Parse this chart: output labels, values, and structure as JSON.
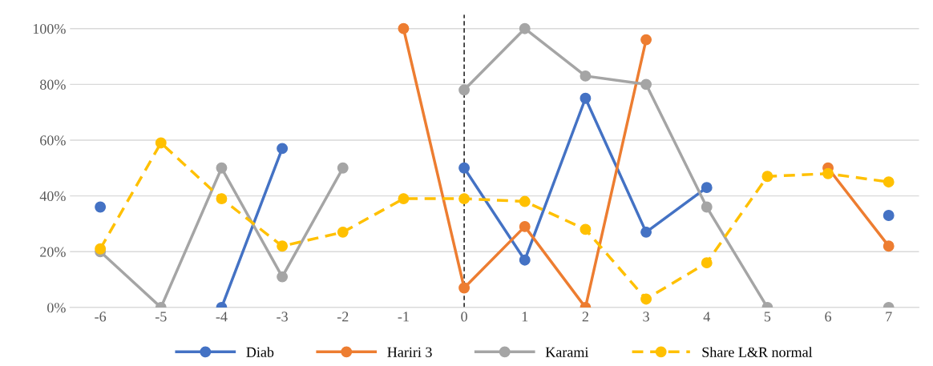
{
  "chart_data": {
    "type": "line",
    "x": [
      -6,
      -5,
      -4,
      -3,
      -2,
      -1,
      0,
      1,
      2,
      3,
      4,
      5,
      6,
      7
    ],
    "series": [
      {
        "name": "Diab",
        "color": "#4472c4",
        "line_style": "solid",
        "values": [
          36,
          null,
          0,
          57,
          null,
          null,
          50,
          17,
          75,
          27,
          43,
          null,
          null,
          33
        ]
      },
      {
        "name": "Hariri 3",
        "color": "#ed7d31",
        "line_style": "solid",
        "values": [
          null,
          null,
          null,
          null,
          null,
          100,
          7,
          29,
          0,
          96,
          null,
          null,
          50,
          22
        ]
      },
      {
        "name": "Karami",
        "color": "#a5a5a5",
        "line_style": "solid",
        "values": [
          20,
          0,
          50,
          11,
          50,
          null,
          78,
          100,
          83,
          80,
          36,
          0,
          null,
          0
        ]
      },
      {
        "name": "Share L&R normal",
        "color": "#ffc000",
        "line_style": "dashed",
        "values": [
          21,
          59,
          39,
          22,
          27,
          39,
          39,
          38,
          28,
          3,
          16,
          47,
          48,
          45
        ]
      }
    ],
    "xlim": [
      -6.5,
      7.5
    ],
    "xticks": [
      -6,
      -5,
      -4,
      -3,
      -2,
      -1,
      0,
      1,
      2,
      3,
      4,
      5,
      6,
      7
    ],
    "ylim": [
      0,
      105
    ],
    "yticks": [
      {
        "value": 0,
        "label": "0%"
      },
      {
        "value": 20,
        "label": "20%"
      },
      {
        "value": 40,
        "label": "40%"
      },
      {
        "value": 60,
        "label": "60%"
      },
      {
        "value": 80,
        "label": "80%"
      },
      {
        "value": 100,
        "label": "100%"
      }
    ],
    "ref_lines": [
      {
        "axis": "x",
        "value": 0,
        "color": "#000000",
        "line_style": "dashed"
      }
    ],
    "grid": "y",
    "legend": "bottom",
    "marker": "circle"
  }
}
